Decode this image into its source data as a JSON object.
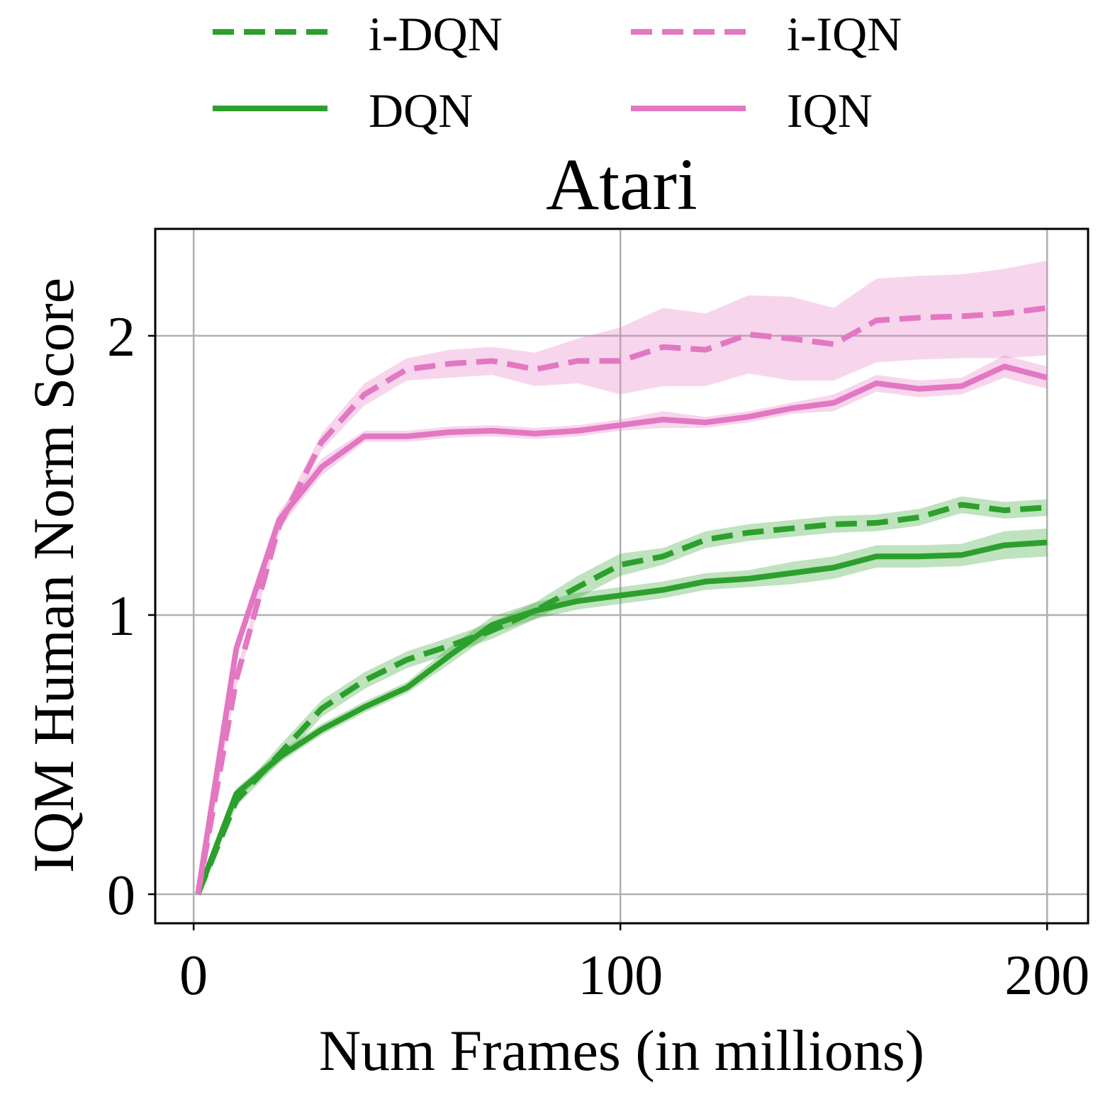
{
  "chart_data": {
    "type": "line",
    "title": "Atari",
    "xlabel": "Num Frames (in millions)",
    "ylabel": "IQM Human Norm Score",
    "xlim": [
      -9,
      209.6
    ],
    "ylim": [
      -0.104,
      2.383
    ],
    "xticks": [
      0,
      100,
      200
    ],
    "xtick_labels": [
      "0",
      "100",
      "200"
    ],
    "yticks": [
      0,
      1,
      2
    ],
    "ytick_labels": [
      "0",
      "1",
      "2"
    ],
    "grid": true,
    "legend_placement": "top (above plot), 2 columns",
    "x": [
      1,
      10,
      20,
      30,
      40,
      50,
      60,
      70,
      80,
      90,
      100,
      110,
      120,
      130,
      140,
      150,
      160,
      170,
      180,
      190,
      200
    ],
    "series": [
      {
        "name": "i-DQN",
        "color": "#2ca02c",
        "style": "dashed",
        "values": [
          0,
          0.335,
          0.5,
          0.665,
          0.765,
          0.84,
          0.89,
          0.945,
          1.015,
          1.1,
          1.18,
          1.21,
          1.27,
          1.295,
          1.31,
          1.325,
          1.33,
          1.35,
          1.395,
          1.375,
          1.385
        ],
        "band": [
          0,
          0.02,
          0.03,
          0.03,
          0.03,
          0.03,
          0.03,
          0.03,
          0.03,
          0.04,
          0.04,
          0.03,
          0.03,
          0.03,
          0.03,
          0.03,
          0.03,
          0.03,
          0.03,
          0.03,
          0.03
        ]
      },
      {
        "name": "DQN",
        "color": "#2ca02c",
        "style": "solid",
        "values": [
          0,
          0.36,
          0.49,
          0.59,
          0.67,
          0.74,
          0.855,
          0.965,
          1.015,
          1.05,
          1.07,
          1.09,
          1.12,
          1.13,
          1.15,
          1.17,
          1.21,
          1.21,
          1.215,
          1.25,
          1.26
        ],
        "band": [
          0,
          0.02,
          0.02,
          0.02,
          0.02,
          0.02,
          0.03,
          0.03,
          0.03,
          0.03,
          0.03,
          0.03,
          0.03,
          0.03,
          0.04,
          0.04,
          0.04,
          0.04,
          0.04,
          0.05,
          0.05
        ]
      },
      {
        "name": "i-IQN",
        "color": "#e377c2",
        "style": "dashed",
        "values": [
          0,
          0.77,
          1.32,
          1.62,
          1.79,
          1.88,
          1.9,
          1.91,
          1.88,
          1.91,
          1.91,
          1.96,
          1.95,
          2.005,
          1.99,
          1.97,
          2.055,
          2.065,
          2.07,
          2.08,
          2.1
        ],
        "band": [
          0,
          0.03,
          0.03,
          0.03,
          0.04,
          0.04,
          0.05,
          0.05,
          0.06,
          0.08,
          0.12,
          0.14,
          0.13,
          0.14,
          0.15,
          0.13,
          0.15,
          0.15,
          0.15,
          0.16,
          0.17
        ]
      },
      {
        "name": "IQN",
        "color": "#e377c2",
        "style": "solid",
        "values": [
          0,
          0.88,
          1.34,
          1.53,
          1.64,
          1.64,
          1.655,
          1.66,
          1.65,
          1.66,
          1.68,
          1.7,
          1.69,
          1.71,
          1.74,
          1.76,
          1.83,
          1.81,
          1.82,
          1.89,
          1.85
        ],
        "band": [
          0,
          0.02,
          0.03,
          0.03,
          0.02,
          0.02,
          0.02,
          0.02,
          0.02,
          0.02,
          0.02,
          0.03,
          0.02,
          0.02,
          0.02,
          0.03,
          0.03,
          0.03,
          0.03,
          0.04,
          0.04
        ]
      }
    ],
    "legend": [
      {
        "label": "i-DQN",
        "series": 0
      },
      {
        "label": "i-IQN",
        "series": 2
      },
      {
        "label": "DQN",
        "series": 1
      },
      {
        "label": "IQN",
        "series": 3
      }
    ]
  }
}
